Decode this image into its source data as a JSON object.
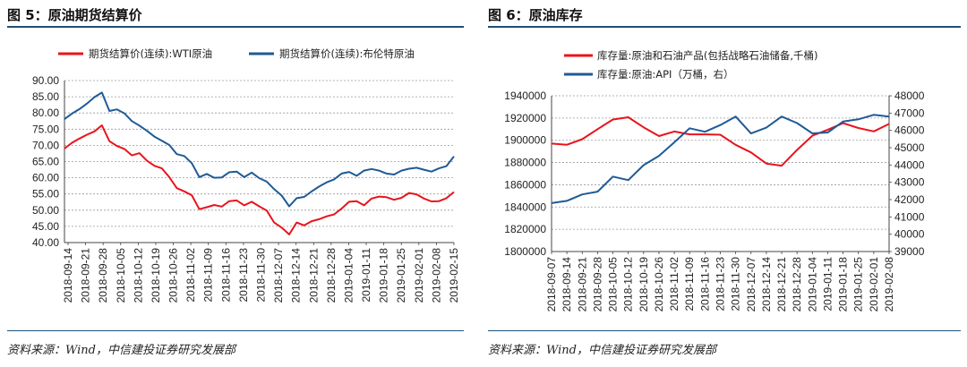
{
  "left": {
    "title": "图 5：原油期货结算价",
    "source": "资料来源：Wind，中信建投证券研究发展部"
  },
  "right": {
    "title": "图 6：原油库存",
    "source": "资料来源：Wind，中信建投证券研究发展部"
  },
  "chart_data": [
    {
      "type": "line",
      "title": "图 5：原油期货结算价",
      "legend_placement": "top",
      "grid": true,
      "ylim": [
        40,
        90
      ],
      "y_ticks": [
        "90.00",
        "85.00",
        "80.00",
        "75.00",
        "70.00",
        "65.00",
        "60.00",
        "55.00",
        "50.00",
        "45.00",
        "40.00"
      ],
      "x_ticks": [
        "2018-09-14",
        "2018-09-21",
        "2018-09-28",
        "2018-10-05",
        "2018-10-12",
        "2018-10-19",
        "2018-10-26",
        "2018-11-02",
        "2018-11-09",
        "2018-11-16",
        "2018-11-23",
        "2018-11-30",
        "2018-12-07",
        "2018-12-14",
        "2018-12-21",
        "2018-12-28",
        "2019-01-04",
        "2019-01-11",
        "2019-01-18",
        "2019-01-25",
        "2019-02-01",
        "2019-02-08",
        "2019-02-15"
      ],
      "series": [
        {
          "name": "期货结算价(连续):WTI原油",
          "color": "#e8141c",
          "values": [
            69.0,
            70.8,
            72.1,
            73.3,
            74.3,
            76.2,
            71.3,
            69.8,
            68.9,
            66.9,
            67.6,
            65.3,
            63.7,
            62.9,
            60.2,
            56.8,
            55.8,
            54.6,
            50.3,
            50.9,
            51.6,
            51.1,
            52.8,
            53.0,
            51.5,
            52.6,
            51.2,
            49.9,
            46.2,
            44.6,
            42.5,
            46.2,
            45.3,
            46.6,
            47.2,
            48.1,
            48.7,
            50.5,
            52.6,
            52.8,
            51.5,
            53.6,
            54.2,
            54.0,
            53.2,
            53.8,
            55.3,
            54.9,
            53.6,
            52.7,
            52.8,
            53.7,
            55.6
          ]
        },
        {
          "name": "期货结算价(连续):布伦特原油",
          "color": "#1f5a96",
          "values": [
            78.1,
            79.8,
            81.2,
            82.9,
            84.9,
            86.3,
            80.6,
            81.1,
            79.9,
            77.5,
            76.1,
            74.5,
            72.7,
            71.4,
            70.1,
            67.3,
            66.7,
            64.5,
            60.2,
            61.2,
            60.0,
            60.1,
            61.7,
            61.9,
            60.2,
            61.6,
            59.9,
            58.8,
            56.5,
            54.5,
            51.2,
            53.7,
            54.1,
            55.8,
            57.3,
            58.6,
            59.5,
            61.3,
            61.8,
            60.6,
            62.2,
            62.7,
            62.2,
            61.3,
            61.0,
            62.2,
            62.8,
            63.1,
            62.5,
            61.9,
            62.9,
            63.6,
            66.6
          ]
        }
      ]
    },
    {
      "type": "line",
      "title": "图 6：原油库存",
      "legend_placement": "top",
      "grid": true,
      "ylim": [
        1800000,
        1940000
      ],
      "y2lim": [
        39000,
        48000
      ],
      "y_ticks": [
        "1940000",
        "1920000",
        "1900000",
        "1880000",
        "1860000",
        "1840000",
        "1820000",
        "1800000"
      ],
      "y2_ticks": [
        "48000",
        "47000",
        "46000",
        "45000",
        "44000",
        "43000",
        "42000",
        "41000",
        "40000",
        "39000"
      ],
      "x": [
        "2018-09-07",
        "2018-09-14",
        "2018-09-21",
        "2018-09-28",
        "2018-10-05",
        "2018-10-12",
        "2018-10-19",
        "2018-10-26",
        "2018-11-02",
        "2018-11-09",
        "2018-11-16",
        "2018-11-23",
        "2018-11-30",
        "2018-12-07",
        "2018-12-14",
        "2018-12-21",
        "2018-12-28",
        "2019-01-04",
        "2019-01-11",
        "2019-01-18",
        "2019-01-25",
        "2019-02-01",
        "2019-02-08"
      ],
      "series": [
        {
          "name": "库存量:原油和石油产品(包括战略石油储备,千桶)",
          "color": "#e8141c",
          "axis": "left",
          "values": [
            1897000,
            1896000,
            1901000,
            1910000,
            1918700,
            1920700,
            1911700,
            1903800,
            1907900,
            1905300,
            1905300,
            1905000,
            1895900,
            1889100,
            1879100,
            1877200,
            1891300,
            1904100,
            1909500,
            1915400,
            1911000,
            1908000,
            1914700
          ]
        },
        {
          "name": "库存量:原油:API（万桶，右）",
          "color": "#1f5a96",
          "axis": "right",
          "values": [
            41800,
            41930,
            42300,
            42460,
            43330,
            43130,
            43990,
            44530,
            45310,
            46120,
            45920,
            46310,
            46800,
            45820,
            46160,
            46800,
            46420,
            45830,
            45880,
            46510,
            46640,
            46900,
            46800
          ]
        }
      ]
    }
  ]
}
